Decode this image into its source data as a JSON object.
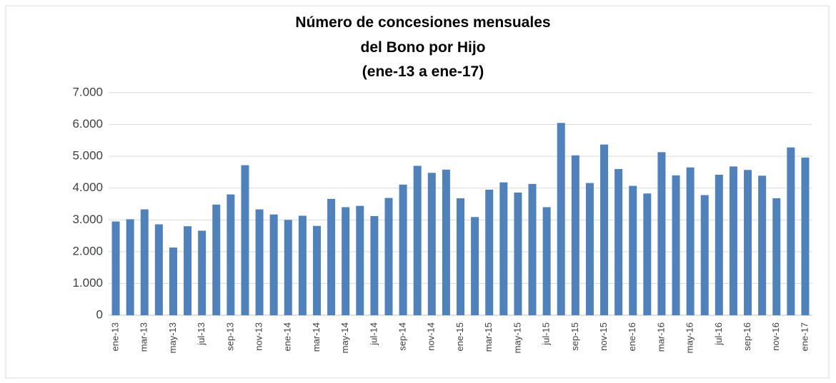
{
  "chart_data": {
    "type": "bar",
    "title": [
      "Número de concesiones mensuales",
      "del Bono por Hijo",
      "(ene-13 a ene-17)"
    ],
    "categories": [
      "ene-13",
      null,
      "mar-13",
      null,
      "may-13",
      null,
      "jul-13",
      null,
      "sep-13",
      null,
      "nov-13",
      null,
      "ene-14",
      null,
      "mar-14",
      null,
      "may-14",
      null,
      "jul-14",
      null,
      "sep-14",
      null,
      "nov-14",
      null,
      "ene-15",
      null,
      "mar-15",
      null,
      "may-15",
      null,
      "jul-15",
      null,
      "sep-15",
      null,
      "nov-15",
      null,
      "ene-16",
      null,
      "mar-16",
      null,
      "may-16",
      null,
      "jul-16",
      null,
      "sep-16",
      null,
      "nov-16",
      null,
      "ene-17"
    ],
    "values": [
      2950,
      3020,
      3330,
      2860,
      2130,
      2800,
      2660,
      3480,
      3800,
      4720,
      3330,
      3170,
      3000,
      3130,
      2810,
      3660,
      3400,
      3440,
      3120,
      3690,
      4110,
      4700,
      4480,
      4580,
      3680,
      3090,
      3950,
      4180,
      3860,
      4130,
      3400,
      6050,
      5030,
      4160,
      5370,
      4600,
      4070,
      3830,
      5130,
      4400,
      4650,
      3780,
      4420,
      4680,
      4570,
      4390,
      3680,
      5280,
      4960
    ],
    "color": "#4f81bd",
    "ylim": [
      0,
      7000
    ],
    "yticks": [
      0,
      {
        "value": 1000,
        "label": "1.000"
      },
      {
        "value": 2000,
        "label": "2.000"
      },
      {
        "value": 3000,
        "label": "3.000"
      },
      {
        "value": 4000,
        "label": "4.000"
      },
      {
        "value": 5000,
        "label": "5.000"
      },
      {
        "value": 6000,
        "label": "6.000"
      },
      {
        "value": 7000,
        "label": "7.000"
      }
    ],
    "grid": true
  }
}
